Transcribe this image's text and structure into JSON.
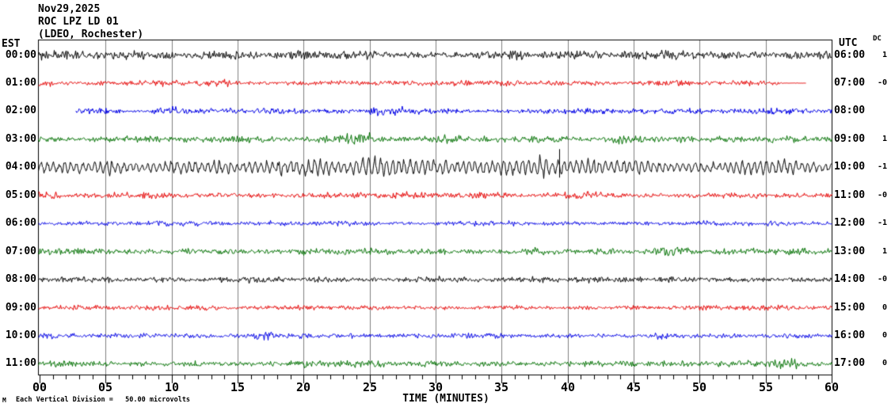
{
  "header": {
    "date": "Nov29,2025",
    "station": "ROC LPZ LD 01",
    "location": "(LDEO, Rochester)"
  },
  "axes": {
    "left_label": "EST",
    "right_label": "UTC",
    "dc_label": "DC",
    "x_title": "TIME (MINUTES)",
    "x_ticks": [
      "00",
      "05",
      "10",
      "15",
      "20",
      "25",
      "30",
      "35",
      "40",
      "45",
      "50",
      "55",
      "60"
    ]
  },
  "footer": {
    "mark": "M",
    "scale_text": "Each Vertical Division =   50.00 microvolts"
  },
  "colors": {
    "black": "#000000",
    "red": "#e60000",
    "blue": "#0000e6",
    "green": "#007000",
    "grid": "#808080",
    "frame": "#000000",
    "background": "#ffffff"
  },
  "chart_data": {
    "type": "line",
    "title": "Nov29,2025 ROC LPZ LD 01 (LDEO, Rochester)",
    "xlabel": "TIME (MINUTES)",
    "x_range": [
      0,
      60
    ],
    "x_major_tick": 5,
    "x_minor_tick": 1,
    "grid": "vertical gray lines every 5 minutes",
    "y_scale": "Each Vertical Division = 50.00 microvolts",
    "rows_are": "one hour per trace, 12 traces, EST left / UTC right, DC offset at far right",
    "rows": [
      {
        "est": "00:00",
        "utc": "06:00",
        "dc": "1",
        "color": "#000000",
        "amp": 6,
        "seed": 11,
        "events": [
          [
            0,
            3,
            1.3
          ],
          [
            36,
            38,
            1.25
          ],
          [
            51,
            54,
            1.2
          ]
        ],
        "spikes": []
      },
      {
        "est": "01:00",
        "utc": "07:00",
        "dc": "-0",
        "color": "#e60000",
        "amp": 4.2,
        "seed": 22,
        "end": 58.1,
        "events": [
          [
            0,
            1,
            1.4
          ],
          [
            13,
            14,
            1.3
          ],
          [
            56.3,
            58.1,
            0.06
          ]
        ],
        "spikes": []
      },
      {
        "est": "02:00",
        "utc": "08:00",
        "dc": "",
        "color": "#0000e6",
        "amp": 3.8,
        "seed": 33,
        "start": 2.75,
        "events": [
          [
            8.8,
            10.2,
            2.2
          ],
          [
            13.2,
            14.6,
            1.5
          ],
          [
            25,
            27.5,
            1.7
          ],
          [
            40,
            42,
            1.3
          ]
        ],
        "spikes": []
      },
      {
        "est": "03:00",
        "utc": "09:00",
        "dc": "1",
        "color": "#007000",
        "amp": 4.6,
        "seed": 44,
        "events": [
          [
            23.2,
            25,
            2.1
          ],
          [
            30.6,
            31.6,
            1.6
          ],
          [
            36.6,
            37.8,
            1.6
          ],
          [
            42.8,
            44.2,
            1.5
          ],
          [
            55,
            57,
            1.4
          ]
        ],
        "spikes": []
      },
      {
        "est": "04:00",
        "utc": "10:00",
        "dc": "-1",
        "color": "#000000",
        "amp": 5,
        "seed": 55,
        "osc": {
          "period": 0.45,
          "amp": 6.5
        },
        "events": [
          [
            0,
            5,
            0.7
          ],
          [
            20,
            40,
            1.35
          ]
        ],
        "spikes": [
          {
            "t": 39.35,
            "up": 23,
            "down": 13
          }
        ]
      },
      {
        "est": "05:00",
        "utc": "11:00",
        "dc": "-0",
        "color": "#e60000",
        "amp": 4.4,
        "seed": 66,
        "events": [
          [
            0,
            1.3,
            2.0
          ],
          [
            41,
            43,
            1.3
          ]
        ],
        "spikes": []
      },
      {
        "est": "06:00",
        "utc": "12:00",
        "dc": "-1",
        "color": "#0000e6",
        "amp": 3.6,
        "seed": 77,
        "events": [
          [
            30,
            33,
            1.3
          ]
        ],
        "spikes": []
      },
      {
        "est": "07:00",
        "utc": "13:00",
        "dc": "1",
        "color": "#007000",
        "amp": 4.8,
        "seed": 88,
        "events": [
          [
            47,
            49,
            1.3
          ]
        ],
        "spikes": []
      },
      {
        "est": "08:00",
        "utc": "14:00",
        "dc": "-0",
        "color": "#000000",
        "amp": 4.2,
        "seed": 99,
        "events": [
          [
            14,
            16,
            1.3
          ],
          [
            20.5,
            22,
            1.35
          ]
        ],
        "spikes": []
      },
      {
        "est": "09:00",
        "utc": "15:00",
        "dc": "0",
        "color": "#e60000",
        "amp": 3.7,
        "seed": 101,
        "events": [
          [
            25,
            26,
            1.25
          ]
        ],
        "spikes": []
      },
      {
        "est": "10:00",
        "utc": "16:00",
        "dc": "0",
        "color": "#0000e6",
        "amp": 3.6,
        "seed": 111,
        "events": [
          [
            16.3,
            18,
            1.9
          ],
          [
            19.5,
            20.5,
            1.5
          ],
          [
            47,
            48.5,
            1.4
          ]
        ],
        "spikes": []
      },
      {
        "est": "11:00",
        "utc": "17:00",
        "dc": "0",
        "color": "#007000",
        "amp": 4.6,
        "seed": 121,
        "events": [
          [
            7,
            8,
            1.3
          ],
          [
            20,
            23,
            1.35
          ],
          [
            55.5,
            57.5,
            1.5
          ]
        ],
        "spikes": []
      }
    ]
  }
}
